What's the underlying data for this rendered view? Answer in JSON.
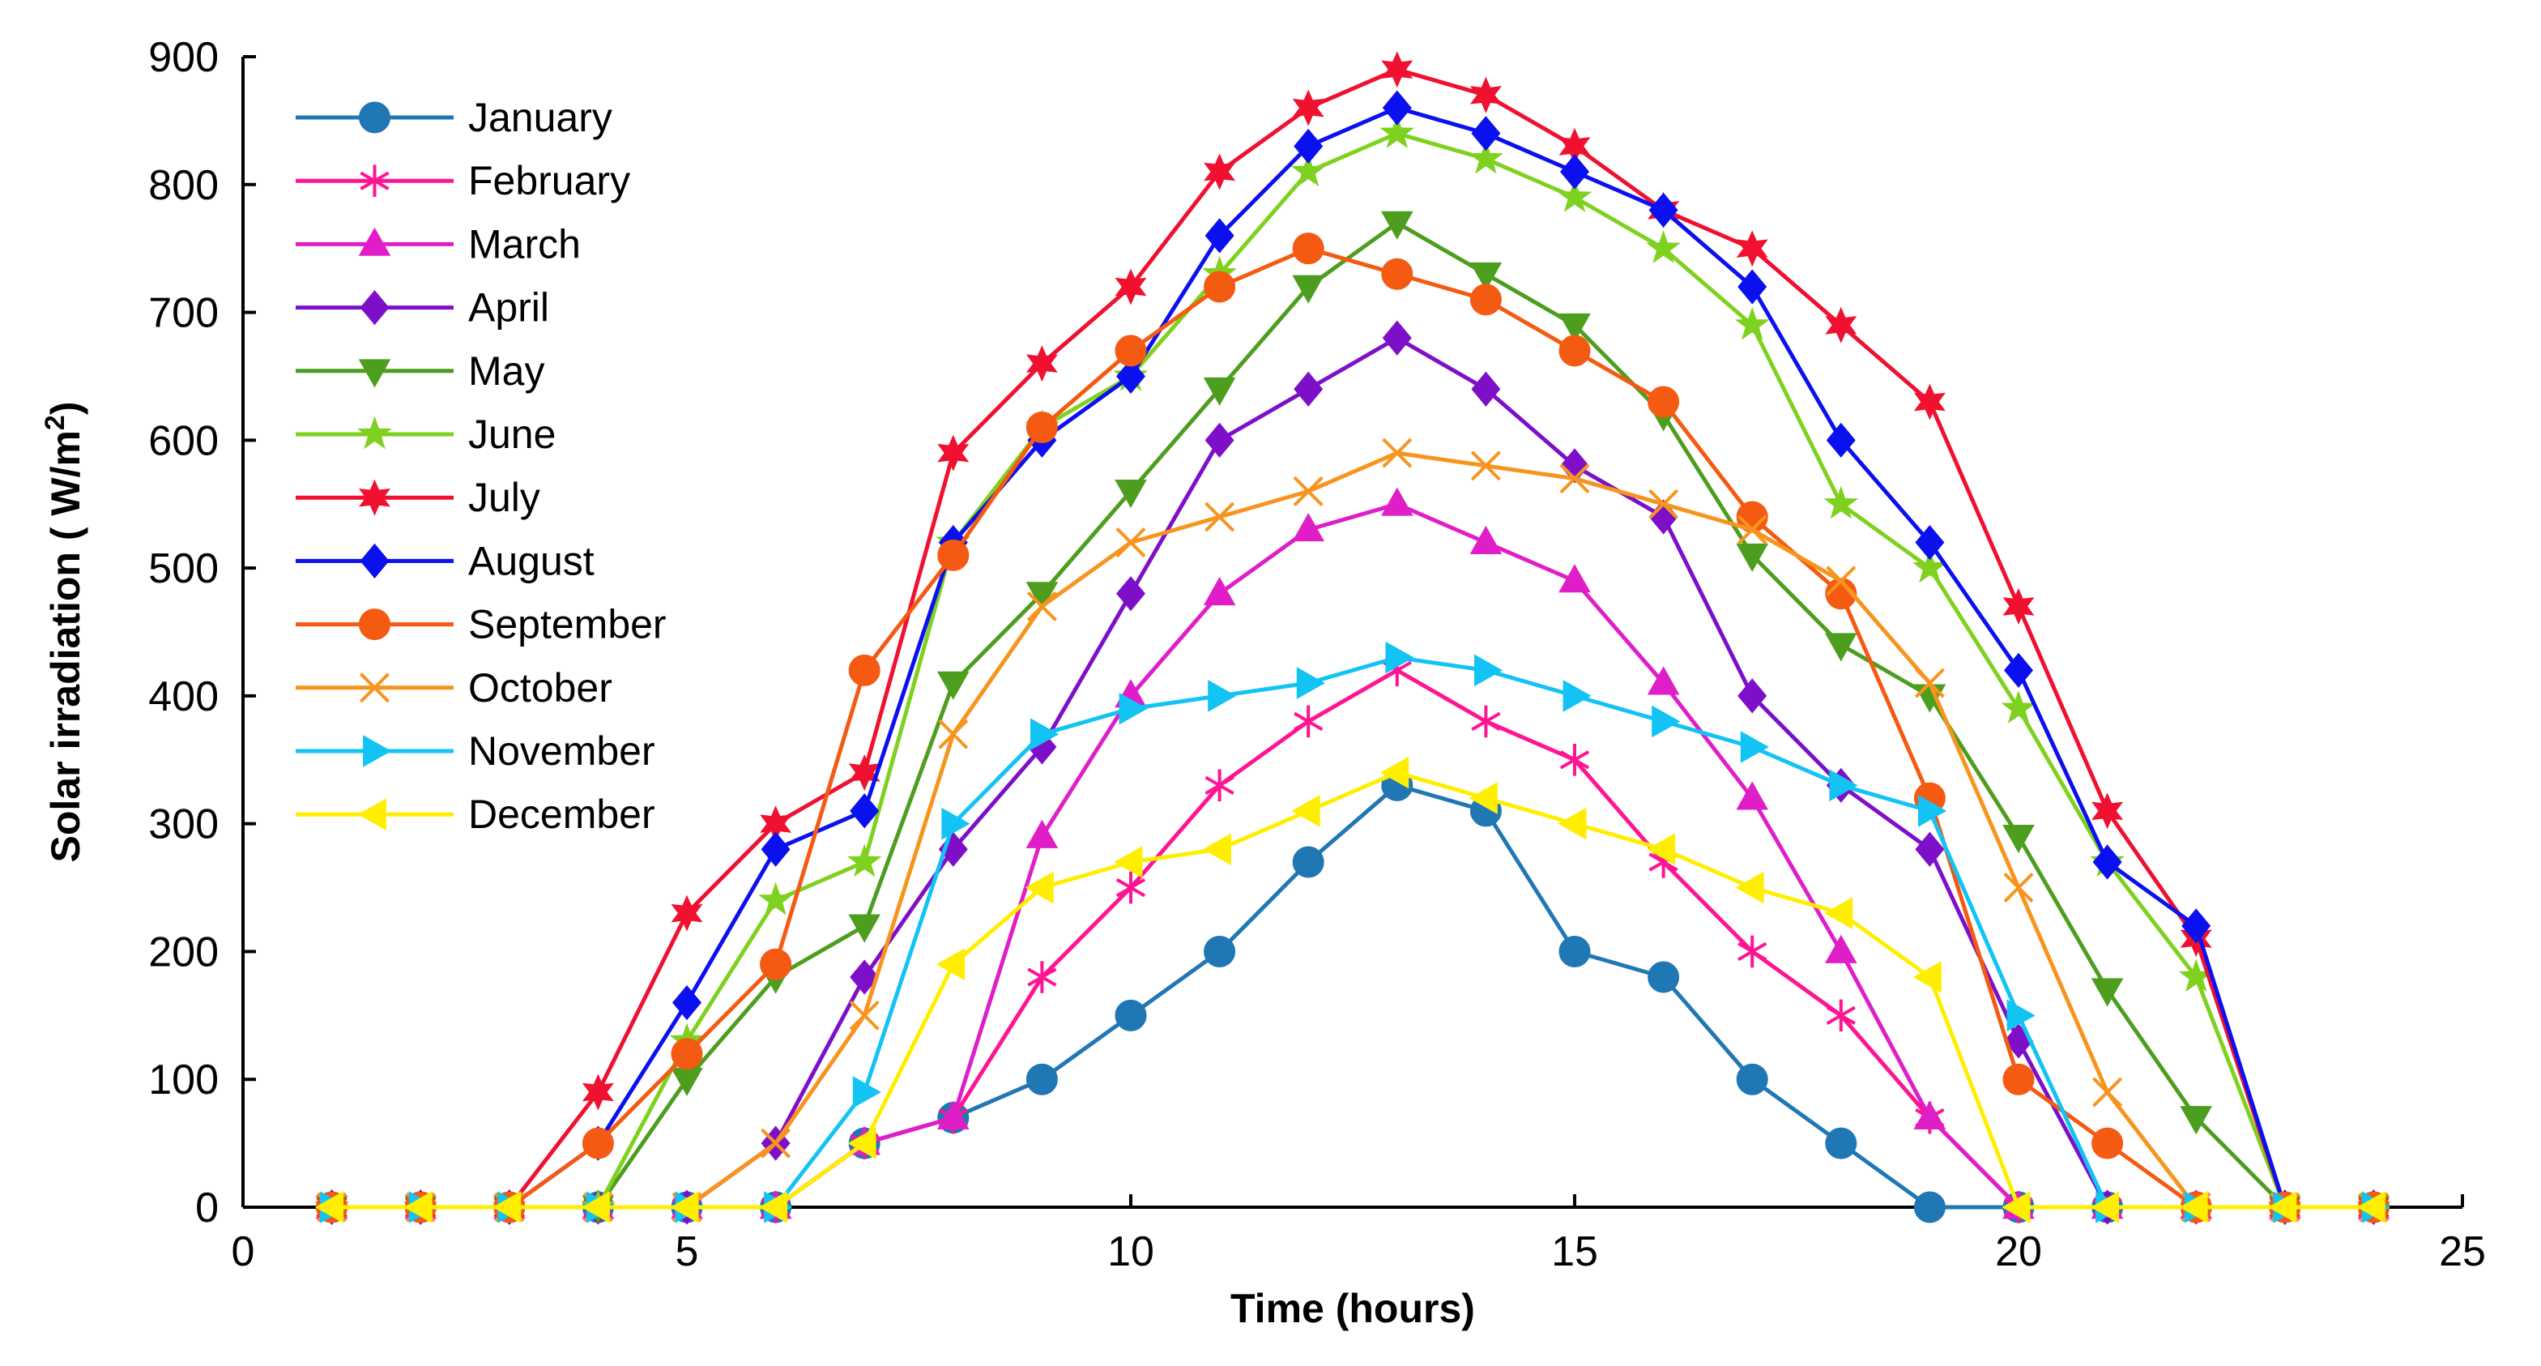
{
  "chart_data": {
    "type": "line",
    "title": "",
    "xlabel": "Time (hours)",
    "ylabel": "Solar irradiation ( W/m",
    "ylabel_sup": "2",
    "ylabel_close": ")",
    "xlim": [
      0,
      25
    ],
    "ylim": [
      0,
      900
    ],
    "xticks": [
      0,
      5,
      10,
      15,
      20,
      25
    ],
    "yticks": [
      0,
      100,
      200,
      300,
      400,
      500,
      600,
      700,
      800,
      900
    ],
    "xtick_labels": [
      "0",
      "5",
      "10",
      "15",
      "20",
      "25"
    ],
    "ytick_labels": [
      "0",
      "100",
      "200",
      "300",
      "400",
      "500",
      "600",
      "700",
      "800",
      "900"
    ],
    "grid": false,
    "legend_position": "top-left",
    "x": [
      1,
      2,
      3,
      4,
      5,
      6,
      7,
      8,
      9,
      10,
      11,
      12,
      13,
      14,
      15,
      16,
      17,
      18,
      19,
      20,
      21,
      22,
      23,
      24
    ],
    "series": [
      {
        "name": "January",
        "color": "#1f77b4",
        "marker": "circle",
        "values": [
          0,
          0,
          0,
          0,
          0,
          0,
          50,
          70,
          100,
          150,
          200,
          270,
          330,
          310,
          200,
          180,
          100,
          50,
          0,
          0,
          0,
          0,
          0,
          0
        ]
      },
      {
        "name": "February",
        "color": "#ff1493",
        "marker": "asterisk",
        "values": [
          0,
          0,
          0,
          0,
          0,
          0,
          50,
          70,
          180,
          250,
          330,
          380,
          420,
          380,
          350,
          270,
          200,
          150,
          70,
          0,
          0,
          0,
          0,
          0
        ]
      },
      {
        "name": "March",
        "color": "#e01ec8",
        "marker": "triangle-up",
        "values": [
          0,
          0,
          0,
          0,
          0,
          0,
          50,
          70,
          290,
          400,
          480,
          530,
          550,
          520,
          490,
          410,
          320,
          200,
          70,
          0,
          0,
          0,
          0,
          0
        ]
      },
      {
        "name": "April",
        "color": "#7e0fc9",
        "marker": "diamond",
        "values": [
          0,
          0,
          0,
          0,
          0,
          50,
          180,
          280,
          360,
          480,
          600,
          640,
          680,
          640,
          580,
          540,
          400,
          330,
          280,
          130,
          0,
          0,
          0,
          0
        ]
      },
      {
        "name": "May",
        "color": "#4d9e1e",
        "marker": "triangle-down",
        "values": [
          0,
          0,
          0,
          0,
          100,
          180,
          220,
          410,
          480,
          560,
          640,
          720,
          770,
          730,
          690,
          620,
          510,
          440,
          400,
          290,
          170,
          70,
          0,
          0
        ]
      },
      {
        "name": "June",
        "color": "#7fd11f",
        "marker": "star5",
        "values": [
          0,
          0,
          0,
          0,
          130,
          240,
          270,
          520,
          610,
          650,
          730,
          810,
          840,
          820,
          790,
          750,
          690,
          550,
          500,
          390,
          270,
          180,
          0,
          0
        ]
      },
      {
        "name": "July",
        "color": "#f0102f",
        "marker": "star6",
        "values": [
          0,
          0,
          0,
          90,
          230,
          300,
          340,
          590,
          660,
          720,
          810,
          860,
          890,
          870,
          830,
          780,
          750,
          690,
          630,
          470,
          310,
          210,
          0,
          0
        ]
      },
      {
        "name": "August",
        "color": "#0b10ee",
        "marker": "diamond",
        "values": [
          0,
          0,
          0,
          50,
          160,
          280,
          310,
          520,
          600,
          650,
          760,
          830,
          860,
          840,
          810,
          780,
          720,
          600,
          520,
          420,
          270,
          220,
          0,
          0
        ]
      },
      {
        "name": "September",
        "color": "#f45a12",
        "marker": "circle",
        "values": [
          0,
          0,
          0,
          50,
          120,
          190,
          420,
          510,
          610,
          670,
          720,
          750,
          730,
          710,
          670,
          630,
          540,
          480,
          320,
          100,
          50,
          0,
          0,
          0
        ]
      },
      {
        "name": "October",
        "color": "#f8941d",
        "marker": "x",
        "values": [
          0,
          0,
          0,
          0,
          0,
          50,
          150,
          370,
          470,
          520,
          540,
          560,
          590,
          580,
          570,
          550,
          530,
          490,
          410,
          250,
          90,
          0,
          0,
          0
        ]
      },
      {
        "name": "November",
        "color": "#12c3f4",
        "marker": "triangle-right",
        "values": [
          0,
          0,
          0,
          0,
          0,
          0,
          90,
          300,
          370,
          390,
          400,
          410,
          430,
          420,
          400,
          380,
          360,
          330,
          310,
          150,
          0,
          0,
          0,
          0
        ]
      },
      {
        "name": "December",
        "color": "#ffee00",
        "marker": "triangle-left",
        "values": [
          0,
          0,
          0,
          0,
          0,
          0,
          50,
          190,
          250,
          270,
          280,
          310,
          340,
          320,
          300,
          280,
          250,
          230,
          180,
          0,
          0,
          0,
          0,
          0
        ]
      }
    ]
  }
}
